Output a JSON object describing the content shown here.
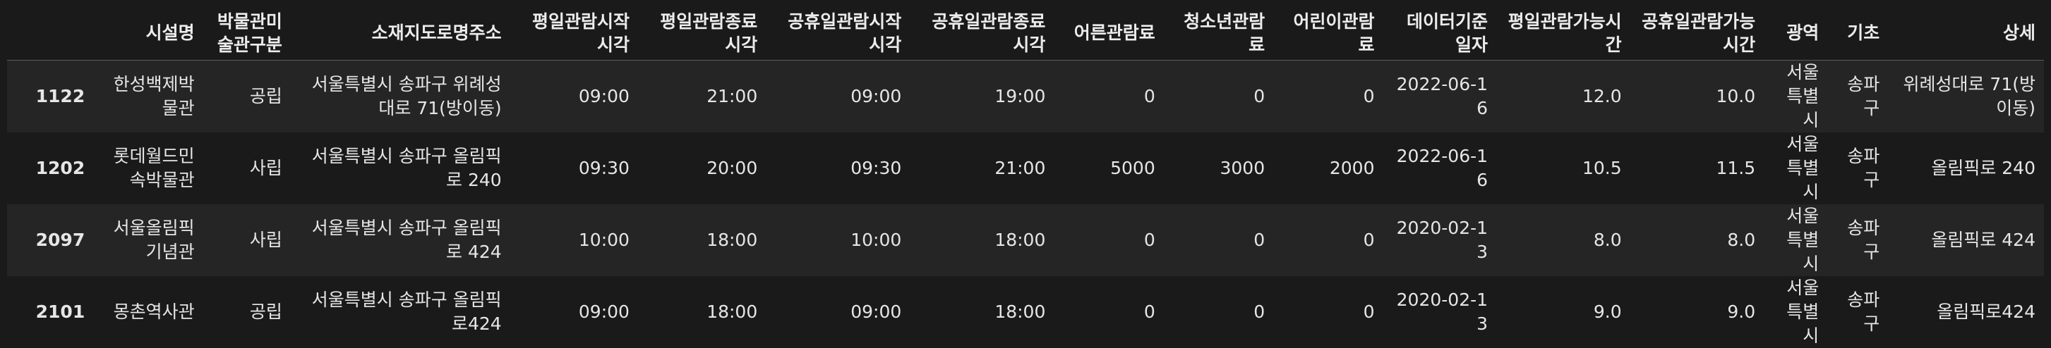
{
  "table": {
    "columns": [
      "",
      "시설명",
      "박물관미술관구분",
      "소재지도로명주소",
      "평일관람시작시각",
      "평일관람종료시각",
      "공휴일관람시작시각",
      "공휴일관람종료시각",
      "어른관람료",
      "청소년관람료",
      "어린이관람료",
      "데이터기준일자",
      "평일관람가능시간",
      "공휴일관람가능시간",
      "광역",
      "기초",
      "상세"
    ],
    "rows": [
      [
        "1122",
        "한성백제박물관",
        "공립",
        "서울특별시 송파구 위례성대로 71(방이동)",
        "09:00",
        "21:00",
        "09:00",
        "19:00",
        "0",
        "0",
        "0",
        "2022-06-16",
        "12.0",
        "10.0",
        "서울특별시",
        "송파구",
        "위례성대로 71(방이동)"
      ],
      [
        "1202",
        "롯데월드민속박물관",
        "사립",
        "서울특별시 송파구 올림픽로 240",
        "09:30",
        "20:00",
        "09:30",
        "21:00",
        "5000",
        "3000",
        "2000",
        "2022-06-16",
        "10.5",
        "11.5",
        "서울특별시",
        "송파구",
        "올림픽로 240"
      ],
      [
        "2097",
        "서울올림픽기념관",
        "사립",
        "서울특별시 송파구 올림픽로 424",
        "10:00",
        "18:00",
        "10:00",
        "18:00",
        "0",
        "0",
        "0",
        "2020-02-13",
        "8.0",
        "8.0",
        "서울특별시",
        "송파구",
        "올림픽로 424"
      ],
      [
        "2101",
        "몽촌역사관",
        "공립",
        "서울특별시 송파구 올림픽로424",
        "09:00",
        "18:00",
        "09:00",
        "18:00",
        "0",
        "0",
        "0",
        "2020-02-13",
        "9.0",
        "9.0",
        "서울특별시",
        "송파구",
        "올림픽로424"
      ]
    ]
  }
}
